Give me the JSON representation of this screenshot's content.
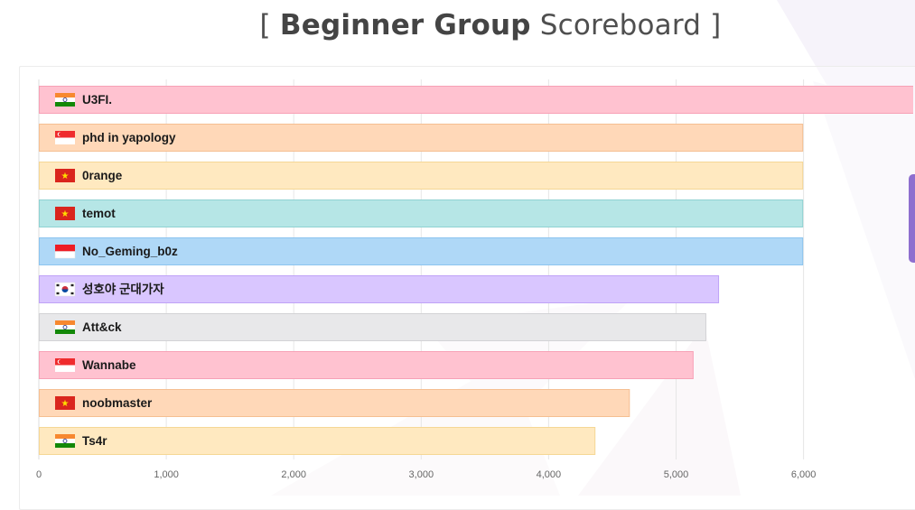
{
  "page": {
    "title_open": "[",
    "title_bold": "Beginner Group",
    "title_rest": "Scoreboard",
    "title_close": "]"
  },
  "chart_data": {
    "type": "bar",
    "orientation": "horizontal",
    "title": "[ Beginner Group Scoreboard ]",
    "xlabel": "",
    "ylabel": "",
    "xlim": [
      0,
      6870
    ],
    "xticks": [
      0,
      1000,
      2000,
      3000,
      4000,
      5000,
      6000
    ],
    "xtick_labels": [
      "0",
      "1,000",
      "2,000",
      "3,000",
      "4,000",
      "5,000",
      "6,000"
    ],
    "grid": true,
    "legend": "none",
    "categories": [
      "U3FI.",
      "phd in yapology",
      "0range",
      "temot",
      "No_Geming_b0z",
      "성호야 군대가자",
      "Att&ck",
      "Wannabe",
      "noobmaster",
      "Ts4r"
    ],
    "values": [
      6870,
      5990,
      5990,
      5990,
      5990,
      5330,
      5230,
      5130,
      4630,
      4360
    ],
    "flags": [
      "india-flag-icon",
      "singapore-flag-icon",
      "vietnam-flag-icon",
      "vietnam-flag-icon",
      "indonesia-flag-icon",
      "south-korea-flag-icon",
      "india-flag-icon",
      "singapore-flag-icon",
      "vietnam-flag-icon",
      "india-flag-icon"
    ],
    "bar_fill_colors": [
      "#ffc2d0",
      "#ffd8b8",
      "#ffe9c0",
      "#b6e6e6",
      "#afd8f7",
      "#d9c6ff",
      "#e8e8ea",
      "#ffc2d0",
      "#ffd8b8",
      "#ffe9c0"
    ],
    "bar_border_colors": [
      "#f7a1b6",
      "#f5bf92",
      "#f5d795",
      "#8fd2d2",
      "#8cc4ef",
      "#bfa3f7",
      "#d2d2d5",
      "#f7a1b6",
      "#f5bf92",
      "#f5d795"
    ]
  }
}
